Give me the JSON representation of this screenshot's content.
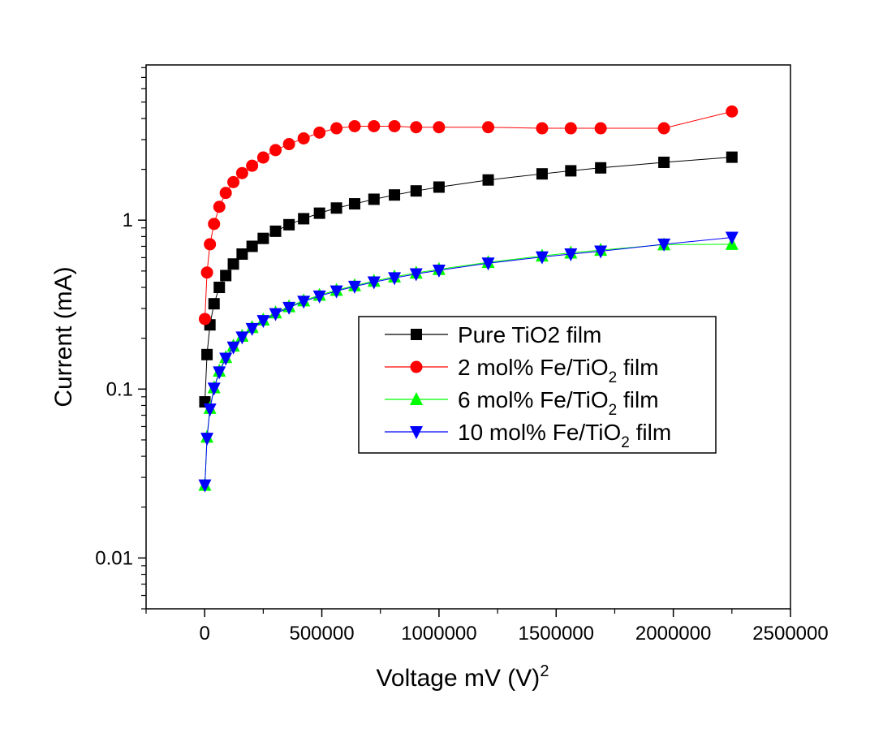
{
  "chart_data": {
    "type": "scatter",
    "xlabel": "Voltage mV (V)",
    "xlabel_sup": "2",
    "ylabel": "Current (mA)",
    "x_scale": "linear",
    "y_scale": "log",
    "xlim": [
      -250000,
      2500000
    ],
    "ylim": [
      0.005,
      8.3
    ],
    "x_ticks": [
      0,
      500000,
      1000000,
      1500000,
      2000000,
      2500000
    ],
    "x_tick_labels": [
      "0",
      "500000",
      "1000000",
      "1500000",
      "2000000",
      "2500000"
    ],
    "y_ticks": [
      0.01,
      0.1,
      1
    ],
    "y_tick_labels": [
      "0.01",
      "0.1",
      "1"
    ],
    "grid": false,
    "legend_position": "center-right",
    "series": [
      {
        "name": "Pure TiO2 film",
        "color": "#000000",
        "marker": "square",
        "x": [
          1000,
          10000,
          22500,
          40000,
          62500,
          90000,
          122500,
          160000,
          202500,
          250000,
          302500,
          360000,
          422500,
          490000,
          562500,
          640000,
          722500,
          810000,
          902500,
          1000000,
          1210000,
          1440000,
          1562500,
          1690000,
          1960000,
          2250000
        ],
        "y": [
          0.084,
          0.16,
          0.24,
          0.32,
          0.4,
          0.47,
          0.55,
          0.63,
          0.7,
          0.78,
          0.86,
          0.94,
          1.02,
          1.1,
          1.18,
          1.25,
          1.33,
          1.41,
          1.49,
          1.57,
          1.73,
          1.88,
          1.96,
          2.04,
          2.2,
          2.36
        ]
      },
      {
        "name": "2 mol% Fe/TiO",
        "name_sub": "2",
        "name_suffix": " film",
        "color": "#ff0000",
        "marker": "circle",
        "x": [
          1000,
          10000,
          22500,
          40000,
          62500,
          90000,
          122500,
          160000,
          202500,
          250000,
          302500,
          360000,
          422500,
          490000,
          562500,
          640000,
          722500,
          810000,
          902500,
          1000000,
          1210000,
          1440000,
          1562500,
          1690000,
          1960000,
          2250000
        ],
        "y": [
          0.26,
          0.49,
          0.72,
          0.95,
          1.2,
          1.45,
          1.68,
          1.9,
          2.1,
          2.35,
          2.6,
          2.82,
          3.05,
          3.3,
          3.5,
          3.6,
          3.6,
          3.6,
          3.55,
          3.55,
          3.55,
          3.5,
          3.5,
          3.5,
          3.5,
          4.4
        ]
      },
      {
        "name": "6 mol% Fe/TiO",
        "name_sub": "2",
        "name_suffix": " film",
        "color": "#00ff00",
        "marker": "triangle-up",
        "x": [
          1000,
          10000,
          22500,
          40000,
          62500,
          90000,
          122500,
          160000,
          202500,
          250000,
          302500,
          360000,
          422500,
          490000,
          562500,
          640000,
          722500,
          810000,
          902500,
          1000000,
          1210000,
          1440000,
          1562500,
          1690000,
          1960000,
          2250000
        ],
        "y": [
          0.027,
          0.052,
          0.077,
          0.102,
          0.128,
          0.154,
          0.18,
          0.206,
          0.232,
          0.257,
          0.283,
          0.308,
          0.334,
          0.36,
          0.385,
          0.41,
          0.436,
          0.462,
          0.487,
          0.512,
          0.563,
          0.614,
          0.64,
          0.665,
          0.716,
          0.72
        ]
      },
      {
        "name": "10 mol% Fe/TiO",
        "name_sub": "2",
        "name_suffix": " film",
        "color": "#0000ff",
        "marker": "triangle-down",
        "x": [
          1000,
          10000,
          22500,
          40000,
          62500,
          90000,
          122500,
          160000,
          202500,
          250000,
          302500,
          360000,
          422500,
          490000,
          562500,
          640000,
          722500,
          810000,
          902500,
          1000000,
          1210000,
          1440000,
          1562500,
          1690000,
          1960000,
          2250000
        ],
        "y": [
          0.027,
          0.051,
          0.076,
          0.101,
          0.126,
          0.152,
          0.177,
          0.203,
          0.228,
          0.254,
          0.279,
          0.304,
          0.33,
          0.355,
          0.38,
          0.405,
          0.43,
          0.455,
          0.48,
          0.505,
          0.556,
          0.605,
          0.63,
          0.655,
          0.72,
          0.79
        ]
      }
    ]
  }
}
